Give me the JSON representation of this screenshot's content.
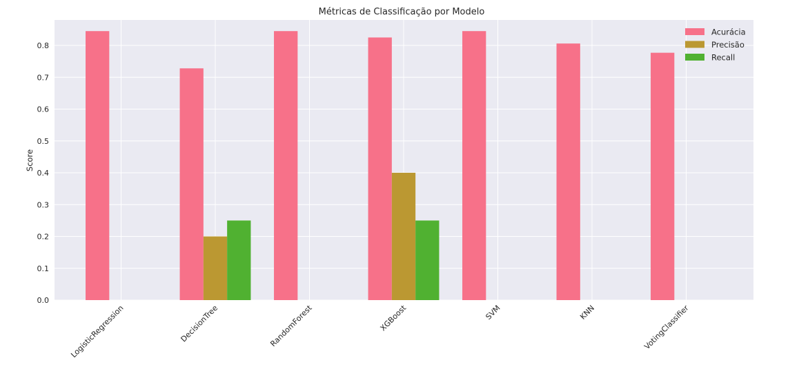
{
  "chart_data": {
    "type": "bar",
    "title": "Métricas de Classificação por Modelo",
    "xlabel": "",
    "ylabel": "Score",
    "ylim": [
      0,
      0.88
    ],
    "yticks": [
      0.0,
      0.1,
      0.2,
      0.3,
      0.4,
      0.5,
      0.6,
      0.7,
      0.8
    ],
    "ytick_labels": [
      "0.0",
      "0.1",
      "0.2",
      "0.3",
      "0.4",
      "0.5",
      "0.6",
      "0.7",
      "0.8"
    ],
    "grid": true,
    "legend_position": "top-right",
    "categories": [
      "LogisticRegression",
      "DecisionTree",
      "RandomForest",
      "XGBoost",
      "SVM",
      "KNN",
      "VotingClassifier"
    ],
    "series": [
      {
        "name": "Acurácia",
        "color": "#f77189",
        "values": [
          0.845,
          0.728,
          0.845,
          0.825,
          0.845,
          0.806,
          0.777
        ]
      },
      {
        "name": "Precisão",
        "color": "#bb9832",
        "values": [
          0.0,
          0.2,
          0.0,
          0.4,
          0.0,
          0.0,
          0.0
        ]
      },
      {
        "name": "Recall",
        "color": "#50b131",
        "values": [
          0.0,
          0.25,
          0.0,
          0.25,
          0.0,
          0.0,
          0.0
        ]
      }
    ]
  },
  "colors": {
    "plot_background": "#eaeaf2",
    "grid": "#ffffff"
  }
}
